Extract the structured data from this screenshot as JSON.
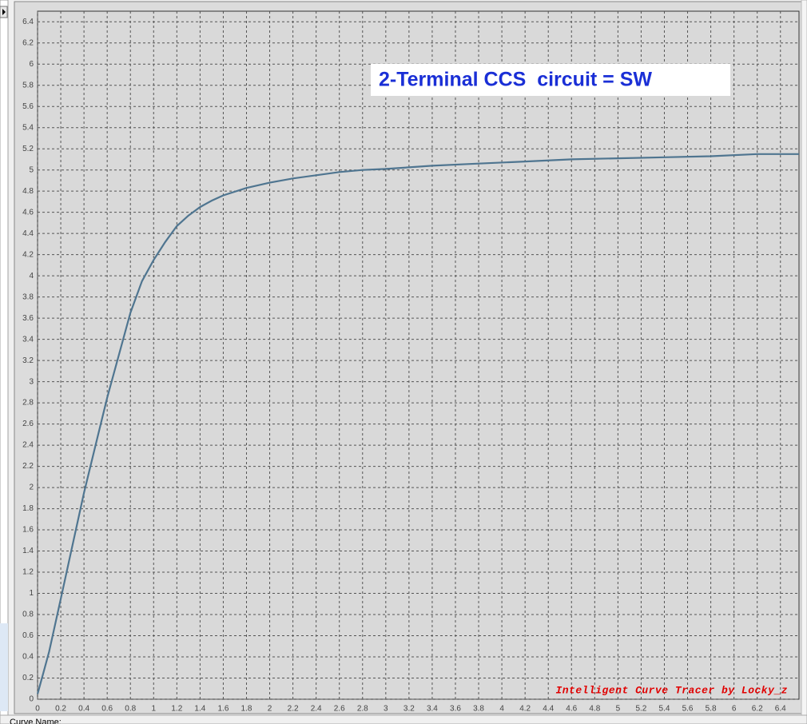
{
  "chart_data": {
    "type": "line",
    "title": "2-Terminal CCS  circuit = SW",
    "watermark": "Intelligent Curve Tracer by Locky_z",
    "color": "#4f7590",
    "x": [
      0,
      0.05,
      0.1,
      0.2,
      0.3,
      0.4,
      0.5,
      0.6,
      0.7,
      0.8,
      0.9,
      1.0,
      1.1,
      1.2,
      1.3,
      1.4,
      1.5,
      1.6,
      1.8,
      2.0,
      2.2,
      2.4,
      2.6,
      2.8,
      3.0,
      3.4,
      3.8,
      4.2,
      4.6,
      5.0,
      5.4,
      5.8,
      6.2,
      6.56
    ],
    "values": [
      0.05,
      0.25,
      0.45,
      0.95,
      1.45,
      1.95,
      2.4,
      2.85,
      3.25,
      3.65,
      3.95,
      4.15,
      4.32,
      4.47,
      4.57,
      4.65,
      4.71,
      4.76,
      4.83,
      4.88,
      4.92,
      4.95,
      4.98,
      5.0,
      5.01,
      5.04,
      5.06,
      5.08,
      5.1,
      5.11,
      5.12,
      5.13,
      5.15,
      5.15
    ],
    "xlim": [
      0,
      6.56
    ],
    "ylim": [
      0,
      6.5
    ],
    "xticks": [
      0,
      0.2,
      0.4,
      0.6,
      0.8,
      1,
      1.2,
      1.4,
      1.6,
      1.8,
      2,
      2.2,
      2.4,
      2.6,
      2.8,
      3,
      3.2,
      3.4,
      3.6,
      3.8,
      4,
      4.2,
      4.4,
      4.6,
      4.8,
      5,
      5.2,
      5.4,
      5.6,
      5.8,
      6,
      6.2,
      6.4
    ],
    "yticks": [
      0,
      0.2,
      0.4,
      0.6,
      0.8,
      1,
      1.2,
      1.4,
      1.6,
      1.8,
      2,
      2.2,
      2.4,
      2.6,
      2.8,
      3,
      3.2,
      3.4,
      3.6,
      3.8,
      4,
      4.2,
      4.4,
      4.6,
      4.8,
      5,
      5.2,
      5.4,
      5.6,
      5.8,
      6,
      6.2,
      6.4
    ],
    "grid": true
  },
  "status_label": "Curve Name:"
}
